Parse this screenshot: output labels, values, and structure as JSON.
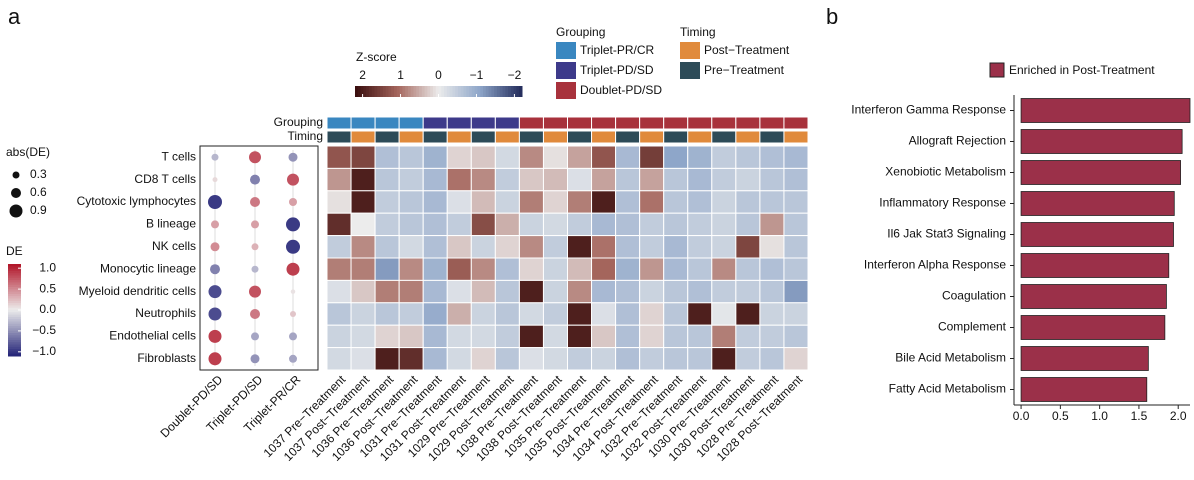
{
  "panels": [
    "a",
    "b"
  ],
  "chart_data": [
    {
      "type": "heatmap",
      "colorbar_title": "Z-score",
      "zlim": [
        2.2,
        -2.2
      ],
      "zticks": [
        2,
        1,
        0,
        {
          "value": -1,
          "label": "−1"
        },
        {
          "value": -2,
          "label": "−2"
        }
      ],
      "colors": [
        "#3b0f0f",
        "#a4655c",
        "#ececec",
        "#8ea6c9",
        "#262f5e"
      ],
      "columns": [
        "1037 Pre−Treatment",
        "1037 Post−Treatment",
        "1036 Pre−Treatment",
        "1036 Post−Treatment",
        "1031 Pre−Treatment",
        "1031 Post−Treatment",
        "1029 Pre−Treatment",
        "1029 Post−Treatment",
        "1038 Pre−Treatment",
        "1038 Post−Treatment",
        "1035 Pre−Treatment",
        "1035 Post−Treatment",
        "1034 Pre−Treatment",
        "1034 Post−Treatment",
        "1032 Pre−Treatment",
        "1032 Post−Treatment",
        "1030 Pre−Treatment",
        "1030 Post−Treatment",
        "1028 Pre−Treatment",
        "1028 Post−Treatment"
      ],
      "annotations": [
        {
          "name": "Grouping",
          "legend": [
            {
              "name": "Triplet-PR/CR",
              "color": "#3a87c0"
            },
            {
              "name": "Triplet-PD/SD",
              "color": "#3d3a8a"
            },
            {
              "name": "Doublet-PD/SD",
              "color": "#a8323c"
            }
          ],
          "values": [
            0,
            0,
            0,
            0,
            1,
            1,
            1,
            1,
            2,
            2,
            2,
            2,
            2,
            2,
            2,
            2,
            2,
            2,
            2,
            2
          ]
        },
        {
          "name": "Timing",
          "legend": [
            {
              "name": "Post−Treatment",
              "color": "#e08a3c"
            },
            {
              "name": "Pre−Treatment",
              "color": "#2d4b58"
            }
          ],
          "values": [
            1,
            0,
            1,
            0,
            1,
            0,
            1,
            0,
            1,
            0,
            1,
            0,
            1,
            0,
            1,
            0,
            1,
            0,
            1,
            0
          ]
        }
      ],
      "values": [
        [
          1.3,
          1.5,
          -0.7,
          -0.6,
          -0.9,
          0.2,
          0.3,
          -0.3,
          0.8,
          0.1,
          0.6,
          1.3,
          -0.8,
          1.6,
          -1.1,
          -0.9,
          -0.5,
          -0.6,
          -0.7,
          -0.8
        ],
        [
          0.7,
          2.0,
          -0.6,
          -0.5,
          -0.8,
          1.0,
          0.8,
          -0.5,
          0.3,
          0.4,
          -0.2,
          0.6,
          -0.6,
          0.6,
          -0.6,
          -0.8,
          -0.5,
          -0.4,
          -0.6,
          -0.7
        ],
        [
          0.1,
          2.0,
          -0.5,
          -0.6,
          -0.8,
          -0.2,
          0.4,
          -0.4,
          0.9,
          0.2,
          0.9,
          2.0,
          -0.7,
          1.0,
          -0.6,
          -0.7,
          -0.4,
          -0.6,
          -0.6,
          -0.6
        ],
        [
          1.8,
          0.0,
          -0.5,
          -0.6,
          -0.7,
          -0.5,
          1.4,
          0.5,
          -0.4,
          -0.3,
          -0.5,
          -0.8,
          -0.7,
          -0.5,
          -0.6,
          -0.5,
          -0.4,
          -0.6,
          0.7,
          -0.6
        ],
        [
          -0.5,
          0.8,
          -0.6,
          -0.3,
          -0.7,
          0.3,
          -0.4,
          0.2,
          0.8,
          -0.5,
          2.0,
          1.0,
          -0.7,
          -0.5,
          -0.8,
          -0.5,
          -0.4,
          1.5,
          0.1,
          -0.6
        ],
        [
          0.9,
          0.9,
          -1.2,
          0.8,
          -0.9,
          1.2,
          0.8,
          -0.7,
          0.2,
          -0.4,
          0.4,
          1.1,
          -0.9,
          0.7,
          -0.8,
          -0.6,
          0.8,
          -0.6,
          -0.7,
          -0.6
        ],
        [
          -0.2,
          0.3,
          0.9,
          0.9,
          -0.8,
          -0.2,
          0.4,
          -0.6,
          2.0,
          -0.4,
          0.8,
          -0.8,
          -0.7,
          -0.4,
          -0.6,
          -0.7,
          -0.5,
          -0.5,
          -0.6,
          -1.2
        ],
        [
          -0.6,
          -0.4,
          -0.6,
          -0.5,
          -1.0,
          0.5,
          -0.4,
          -0.6,
          -0.3,
          -0.5,
          2.0,
          -0.2,
          -0.7,
          0.2,
          -0.6,
          2.0,
          -0.1,
          2.0,
          -0.4,
          -0.4
        ],
        [
          -0.4,
          -0.3,
          0.2,
          0.3,
          -0.8,
          -0.3,
          -0.3,
          -0.5,
          2.0,
          -0.3,
          2.0,
          0.3,
          -0.7,
          0.2,
          -0.6,
          -0.6,
          0.9,
          -0.5,
          -0.5,
          -0.6
        ],
        [
          -0.3,
          -0.2,
          2.0,
          1.8,
          -0.8,
          -0.3,
          0.2,
          -0.6,
          -0.2,
          -0.3,
          -0.5,
          -0.4,
          -0.7,
          -0.5,
          -0.6,
          -0.6,
          2.0,
          -0.5,
          -0.6,
          0.2
        ]
      ]
    },
    {
      "type": "dotplot",
      "categories": [
        "T cells",
        "CD8 T cells",
        "Cytotoxic lymphocytes",
        "B lineage",
        "NK cells",
        "Monocytic lineage",
        "Myeloid dendritic cells",
        "Neutrophils",
        "Endothelial cells",
        "Fibroblasts"
      ],
      "columns": [
        "Doublet-PD/SD",
        "Triplet-PD/SD",
        "Triplet-PR/CR"
      ],
      "size_title": "abs(DE)",
      "size_ticks": [
        0.3,
        0.6,
        0.9
      ],
      "color_title": "DE",
      "clim": [
        -1.1,
        1.1
      ],
      "cticks": [
        {
          "value": 1,
          "label": "1.0"
        },
        0.5,
        {
          "value": 0,
          "label": "0.0"
        },
        {
          "value": -0.5,
          "label": "−0.5"
        },
        {
          "value": -1,
          "label": "−1.0"
        }
      ],
      "colors": [
        "#28287a",
        "#ececec",
        "#b2182b"
      ],
      "values": [
        [
          -0.3,
          0.8,
          -0.5
        ],
        [
          0.1,
          -0.6,
          0.8
        ],
        [
          -1.0,
          0.6,
          0.4
        ],
        [
          0.4,
          0.4,
          -1.0
        ],
        [
          0.5,
          0.3,
          -1.0
        ],
        [
          -0.6,
          -0.3,
          0.9
        ],
        [
          -0.9,
          0.8,
          0.05
        ],
        [
          -0.9,
          0.6,
          0.2
        ],
        [
          0.9,
          -0.4,
          -0.4
        ],
        [
          0.9,
          -0.5,
          -0.4
        ]
      ]
    },
    {
      "type": "bar",
      "categories": [
        "Interferon Gamma Response",
        "Allograft Rejection",
        "Xenobiotic Metabolism",
        "Inflammatory Response",
        "Il6 Jak Stat3 Signaling",
        "Interferon Alpha Response",
        "Coagulation",
        "Complement",
        "Bile Acid Metabolism",
        "Fatty Acid Metabolism"
      ],
      "series": [
        {
          "name": "Enriched in Post-Treatment",
          "color": "#9b3049",
          "values": [
            2.15,
            2.05,
            2.03,
            1.95,
            1.94,
            1.88,
            1.85,
            1.83,
            1.62,
            1.6
          ]
        }
      ],
      "xlim": [
        -0.09,
        2.15
      ],
      "xticks": [
        {
          "value": 0,
          "label": "0.0"
        },
        0.5,
        {
          "value": 1,
          "label": "1.0"
        },
        1.5,
        {
          "value": 2,
          "label": "2.0"
        }
      ]
    }
  ]
}
